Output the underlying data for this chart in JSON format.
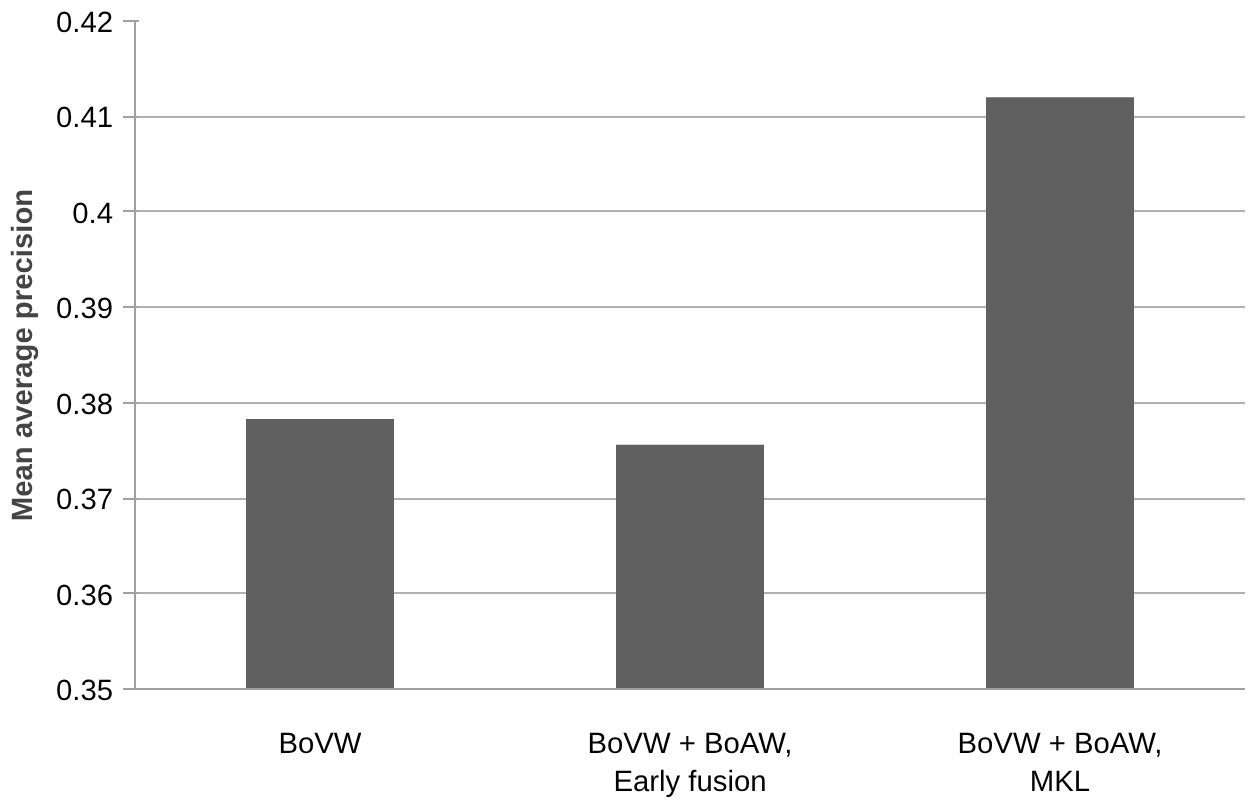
{
  "chart_data": {
    "type": "bar",
    "ylabel": "Mean average precision",
    "categories": [
      "BoVW",
      "BoVW + BoAW,\nEarly fusion",
      "BoVW + BoAW,\nMKL"
    ],
    "values": [
      0.3783,
      0.3756,
      0.412
    ],
    "color": "#606060",
    "ylim": [
      0.35,
      0.42
    ],
    "yticks": [
      0.35,
      0.36,
      0.37,
      0.38,
      0.39,
      0.4,
      0.41,
      0.42
    ],
    "grid": "y"
  }
}
